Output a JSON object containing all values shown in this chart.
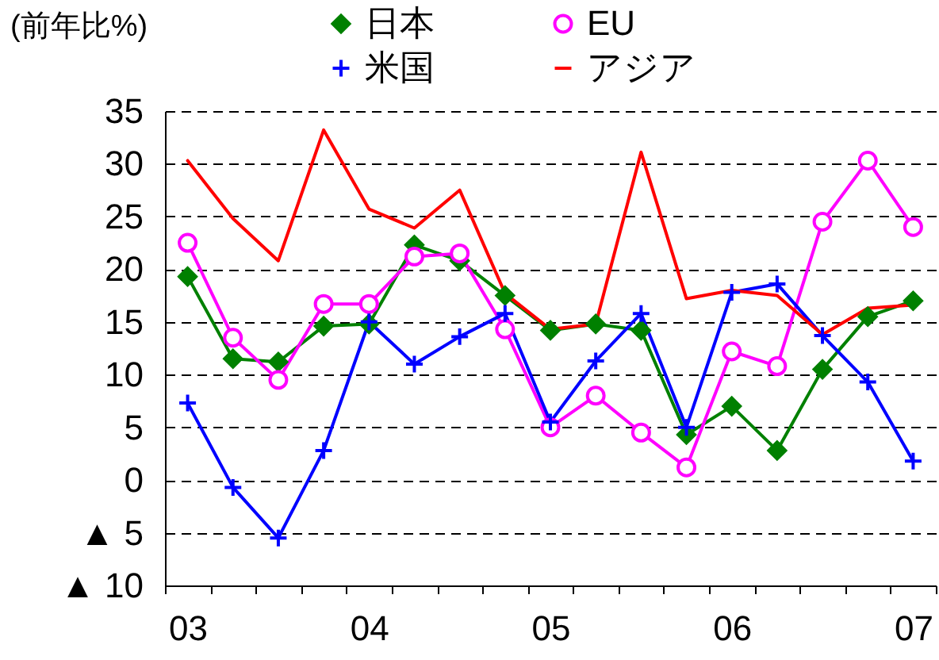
{
  "chart_data": {
    "type": "line",
    "ylabel": "(前年比%)",
    "categories": [
      "03",
      null,
      null,
      null,
      "04",
      null,
      null,
      null,
      "05",
      null,
      null,
      null,
      "06",
      null,
      null,
      null,
      "07"
    ],
    "series": [
      {
        "name": "日本",
        "color": "#008000",
        "marker": "diamond",
        "values": [
          19.3,
          11.5,
          11.2,
          14.6,
          14.8,
          22.3,
          20.8,
          17.5,
          14.2,
          14.8,
          14.2,
          4.3,
          7.0,
          2.8,
          10.5,
          15.5,
          17.0
        ]
      },
      {
        "name": "EU",
        "color": "#ff00ff",
        "marker": "circle",
        "values": [
          22.5,
          13.5,
          9.5,
          16.7,
          16.7,
          21.2,
          21.5,
          14.3,
          5.0,
          8.0,
          4.5,
          1.2,
          12.2,
          10.8,
          24.5,
          30.3,
          24.0
        ]
      },
      {
        "name": "米国",
        "color": "#0000ff",
        "marker": "cross",
        "values": [
          7.3,
          -0.7,
          -5.5,
          2.8,
          15.0,
          11.0,
          13.6,
          15.8,
          5.5,
          11.3,
          15.8,
          5.0,
          17.8,
          18.6,
          13.7,
          9.3,
          1.8
        ]
      },
      {
        "name": "アジア",
        "color": "#ff0000",
        "marker": "none",
        "values": [
          30.3,
          24.8,
          20.8,
          33.2,
          25.7,
          23.9,
          27.5,
          17.7,
          14.3,
          14.8,
          31.1,
          17.2,
          18.0,
          17.5,
          13.8,
          16.3,
          16.6
        ]
      }
    ],
    "ylim": [
      -10,
      35
    ],
    "yticks": [
      {
        "value": -10,
        "label": "▲ 10"
      },
      {
        "value": -5,
        "label": "▲ 5"
      },
      0,
      5,
      10,
      15,
      20,
      25,
      30,
      35
    ],
    "grid": "y",
    "legend": "top"
  }
}
